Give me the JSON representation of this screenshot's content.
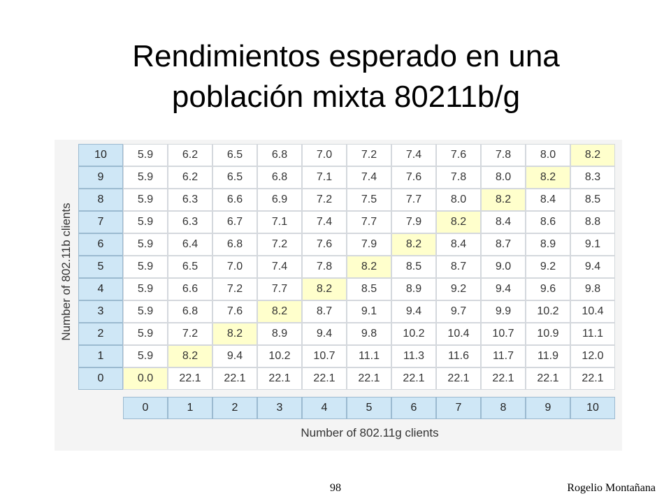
{
  "slide": {
    "title_line1": "Rendimientos esperado en una",
    "title_line2": "población mixta 80211b/g",
    "page_number": "98",
    "author": "Rogelio Montañana"
  },
  "table": {
    "y_axis_label": "Number of 802.11b clients",
    "x_axis_label": "Number of 802.11g clients",
    "row_headers": [
      "10",
      "9",
      "8",
      "7",
      "6",
      "5",
      "4",
      "3",
      "2",
      "1",
      "0"
    ],
    "col_headers": [
      "0",
      "1",
      "2",
      "3",
      "4",
      "5",
      "6",
      "7",
      "8",
      "9",
      "10"
    ],
    "rows": [
      [
        "5.9",
        "6.2",
        "6.5",
        "6.8",
        "7.0",
        "7.2",
        "7.4",
        "7.6",
        "7.8",
        "8.0",
        "8.2"
      ],
      [
        "5.9",
        "6.2",
        "6.5",
        "6.8",
        "7.1",
        "7.4",
        "7.6",
        "7.8",
        "8.0",
        "8.2",
        "8.3"
      ],
      [
        "5.9",
        "6.3",
        "6.6",
        "6.9",
        "7.2",
        "7.5",
        "7.7",
        "8.0",
        "8.2",
        "8.4",
        "8.5"
      ],
      [
        "5.9",
        "6.3",
        "6.7",
        "7.1",
        "7.4",
        "7.7",
        "7.9",
        "8.2",
        "8.4",
        "8.6",
        "8.8"
      ],
      [
        "5.9",
        "6.4",
        "6.8",
        "7.2",
        "7.6",
        "7.9",
        "8.2",
        "8.4",
        "8.7",
        "8.9",
        "9.1"
      ],
      [
        "5.9",
        "6.5",
        "7.0",
        "7.4",
        "7.8",
        "8.2",
        "8.5",
        "8.7",
        "9.0",
        "9.2",
        "9.4"
      ],
      [
        "5.9",
        "6.6",
        "7.2",
        "7.7",
        "8.2",
        "8.5",
        "8.9",
        "9.2",
        "9.4",
        "9.6",
        "9.8"
      ],
      [
        "5.9",
        "6.8",
        "7.6",
        "8.2",
        "8.7",
        "9.1",
        "9.4",
        "9.7",
        "9.9",
        "10.2",
        "10.4"
      ],
      [
        "5.9",
        "7.2",
        "8.2",
        "8.9",
        "9.4",
        "9.8",
        "10.2",
        "10.4",
        "10.7",
        "10.9",
        "11.1"
      ],
      [
        "5.9",
        "8.2",
        "9.4",
        "10.2",
        "10.7",
        "11.1",
        "11.3",
        "11.6",
        "11.7",
        "11.9",
        "12.0"
      ],
      [
        "0.0",
        "22.1",
        "22.1",
        "22.1",
        "22.1",
        "22.1",
        "22.1",
        "22.1",
        "22.1",
        "22.1",
        "22.1"
      ]
    ],
    "highlight_color": "#ffffcc",
    "header_color": "#cfe7f6"
  }
}
